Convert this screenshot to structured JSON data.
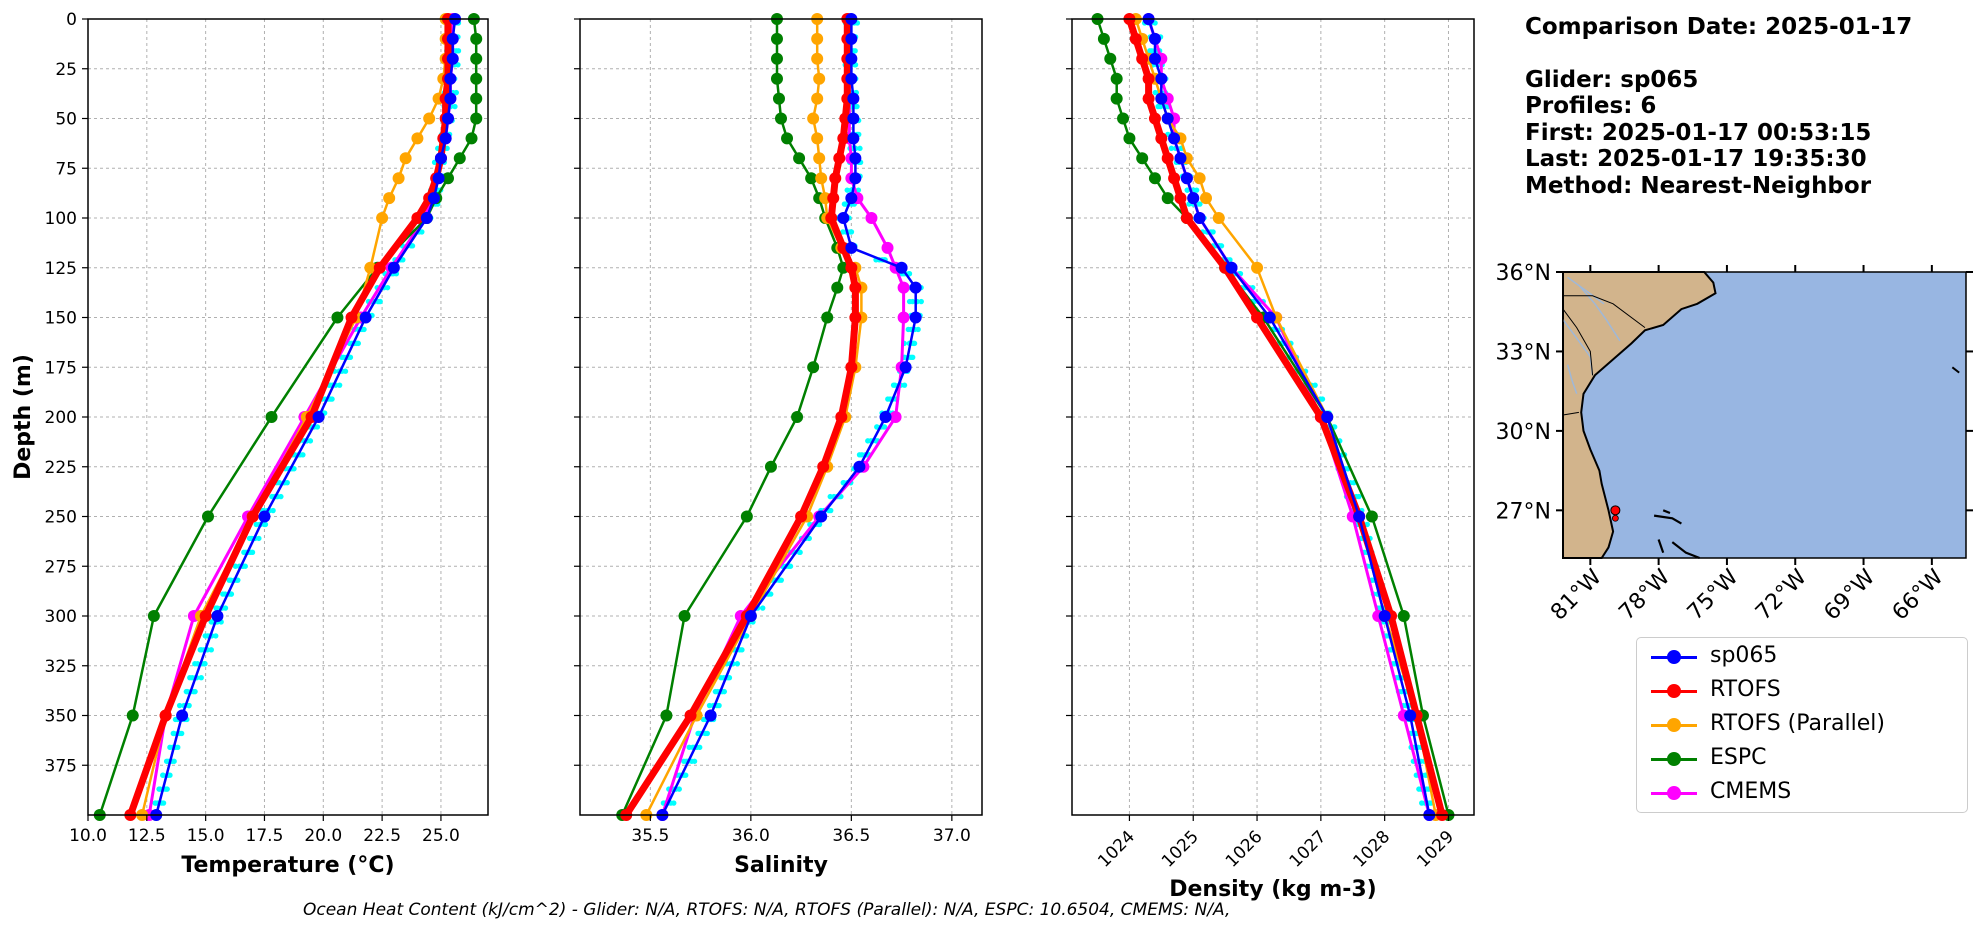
{
  "info": {
    "comparison": "Comparison Date: 2025-01-17",
    "glider": "Glider: sp065",
    "profiles": "Profiles: 6",
    "first": "First: 2025-01-17 00:53:15",
    "last": "Last: 2025-01-17 19:35:30",
    "method": "Method: Nearest-Neighbor"
  },
  "footer": "Ocean Heat Content (kJ/cm^2) - Glider: N/A,  RTOFS: N/A,  RTOFS (Parallel): N/A,  ESPC: 10.6504,  CMEMS: N/A,",
  "colors": {
    "sp065": "#0000ff",
    "RTOFS": "#ff0000",
    "RTOFS (Parallel)": "#ffa500",
    "ESPC": "#008000",
    "CMEMS": "#ff00ff",
    "glider_profiles": "#00ffff",
    "land": "#d2b48c",
    "ocean": "#98b6e2",
    "grid": "#b0b0b0"
  },
  "legend": [
    {
      "label": "sp065",
      "color": "#0000ff"
    },
    {
      "label": "RTOFS",
      "color": "#ff0000"
    },
    {
      "label": "RTOFS (Parallel)",
      "color": "#ffa500"
    },
    {
      "label": "ESPC",
      "color": "#008000"
    },
    {
      "label": "CMEMS",
      "color": "#ff00ff"
    }
  ],
  "chart_data": [
    {
      "type": "line",
      "xlabel": "Temperature (°C)",
      "ylabel": "Depth (m)",
      "xlim": [
        10,
        27
      ],
      "ylim": [
        400,
        0
      ],
      "grid": true,
      "xticks": [
        "10.0",
        "12.5",
        "15.0",
        "17.5",
        "20.0",
        "22.5",
        "25.0"
      ],
      "yticks": [
        "0",
        "25",
        "50",
        "75",
        "100",
        "125",
        "150",
        "175",
        "200",
        "225",
        "250",
        "275",
        "300",
        "325",
        "350",
        "375"
      ],
      "depth": [
        0,
        10,
        20,
        30,
        40,
        50,
        60,
        70,
        80,
        90,
        100,
        125,
        150,
        200,
        250,
        300,
        350,
        400
      ],
      "series": [
        {
          "name": "sp065",
          "values": [
            25.6,
            25.5,
            25.5,
            25.4,
            25.4,
            25.3,
            25.2,
            25.0,
            24.9,
            24.7,
            24.4,
            23.0,
            21.8,
            19.8,
            17.5,
            15.5,
            14.0,
            12.9
          ]
        },
        {
          "name": "RTOFS",
          "values": [
            25.3,
            25.3,
            25.3,
            25.3,
            25.2,
            25.2,
            25.1,
            25.0,
            24.8,
            24.5,
            24.0,
            22.4,
            21.2,
            19.5,
            17.0,
            15.0,
            13.3,
            11.8
          ]
        },
        {
          "name": "RTOFS (Parallel)",
          "values": [
            25.2,
            25.2,
            25.2,
            25.1,
            24.9,
            24.5,
            24.0,
            23.5,
            23.2,
            22.8,
            22.5,
            22.0,
            21.4,
            19.3,
            17.0,
            14.8,
            13.3,
            12.3
          ]
        },
        {
          "name": "ESPC",
          "values": [
            26.4,
            26.5,
            26.5,
            26.5,
            26.5,
            26.5,
            26.3,
            25.8,
            25.3,
            24.8,
            24.4,
            22.3,
            20.6,
            17.8,
            15.1,
            12.8,
            11.9,
            10.5
          ]
        },
        {
          "name": "CMEMS",
          "values": [
            25.5,
            25.5,
            25.5,
            25.4,
            25.4,
            25.3,
            25.2,
            25.0,
            24.8,
            24.6,
            24.3,
            22.9,
            21.6,
            19.2,
            16.8,
            14.5,
            13.3,
            12.6
          ]
        }
      ]
    },
    {
      "type": "line",
      "xlabel": "Salinity",
      "ylim": [
        400,
        0
      ],
      "xlim": [
        35.15,
        37.15
      ],
      "grid": true,
      "xticks": [
        "35.5",
        "36.0",
        "36.5",
        "37.0"
      ],
      "depth": [
        0,
        10,
        20,
        30,
        40,
        50,
        60,
        70,
        80,
        90,
        100,
        115,
        125,
        135,
        150,
        175,
        200,
        225,
        250,
        300,
        350,
        400
      ],
      "series": [
        {
          "name": "sp065",
          "values": [
            36.5,
            36.5,
            36.5,
            36.5,
            36.51,
            36.51,
            36.51,
            36.52,
            36.52,
            36.5,
            36.46,
            36.5,
            36.75,
            36.82,
            36.82,
            36.77,
            36.67,
            36.54,
            36.35,
            36.0,
            35.8,
            35.56
          ]
        },
        {
          "name": "RTOFS",
          "values": [
            36.48,
            36.48,
            36.48,
            36.48,
            36.48,
            36.47,
            36.46,
            36.44,
            36.42,
            36.41,
            36.4,
            36.46,
            36.5,
            36.52,
            36.52,
            36.5,
            36.45,
            36.36,
            36.25,
            35.98,
            35.7,
            35.38
          ]
        },
        {
          "name": "RTOFS (Parallel)",
          "values": [
            36.33,
            36.33,
            36.33,
            36.34,
            36.33,
            36.31,
            36.33,
            36.34,
            36.35,
            36.37,
            36.38,
            36.45,
            36.52,
            36.55,
            36.55,
            36.52,
            36.47,
            36.38,
            36.28,
            36.0,
            35.73,
            35.48
          ]
        },
        {
          "name": "ESPC",
          "values": [
            36.13,
            36.13,
            36.13,
            36.13,
            36.14,
            36.15,
            36.18,
            36.24,
            36.3,
            36.34,
            36.37,
            36.43,
            36.46,
            36.43,
            36.38,
            36.31,
            36.23,
            36.1,
            35.98,
            35.67,
            35.58,
            35.36
          ]
        },
        {
          "name": "CMEMS",
          "values": [
            36.49,
            36.49,
            36.49,
            36.49,
            36.49,
            36.49,
            36.49,
            36.5,
            36.5,
            36.53,
            36.6,
            36.68,
            36.72,
            36.76,
            36.76,
            36.75,
            36.72,
            36.56,
            36.34,
            35.95,
            35.72,
            35.56
          ]
        }
      ]
    },
    {
      "type": "line",
      "xlabel": "Density (kg m-3)",
      "ylim": [
        400,
        0
      ],
      "xlim": [
        1023.1,
        1029.4
      ],
      "grid": true,
      "xticks": [
        "1024",
        "1025",
        "1026",
        "1027",
        "1028",
        "1029"
      ],
      "depth": [
        0,
        10,
        20,
        30,
        40,
        50,
        60,
        70,
        80,
        90,
        100,
        125,
        150,
        200,
        250,
        300,
        350,
        400
      ],
      "series": [
        {
          "name": "sp065",
          "values": [
            1024.3,
            1024.4,
            1024.4,
            1024.5,
            1024.5,
            1024.6,
            1024.7,
            1024.8,
            1024.9,
            1025.0,
            1025.1,
            1025.6,
            1026.2,
            1027.1,
            1027.6,
            1028.0,
            1028.4,
            1028.7
          ]
        },
        {
          "name": "RTOFS",
          "values": [
            1024.0,
            1024.1,
            1024.2,
            1024.3,
            1024.3,
            1024.4,
            1024.5,
            1024.6,
            1024.7,
            1024.8,
            1024.9,
            1025.5,
            1026.0,
            1027.0,
            1027.6,
            1028.1,
            1028.5,
            1028.9
          ]
        },
        {
          "name": "RTOFS (Parallel)",
          "values": [
            1024.1,
            1024.2,
            1024.3,
            1024.4,
            1024.5,
            1024.6,
            1024.8,
            1024.9,
            1025.1,
            1025.2,
            1025.4,
            1026.0,
            1026.3,
            1027.1,
            1027.6,
            1028.0,
            1028.5,
            1028.8
          ]
        },
        {
          "name": "ESPC",
          "values": [
            1023.5,
            1023.6,
            1023.7,
            1023.8,
            1023.8,
            1023.9,
            1024.0,
            1024.2,
            1024.4,
            1024.6,
            1024.9,
            1025.5,
            1026.1,
            1027.1,
            1027.8,
            1028.3,
            1028.6,
            1029.0
          ]
        },
        {
          "name": "CMEMS",
          "values": [
            1024.3,
            1024.4,
            1024.5,
            1024.5,
            1024.6,
            1024.7,
            1024.7,
            1024.8,
            1024.9,
            1025.0,
            1025.1,
            1025.6,
            1026.3,
            1027.0,
            1027.5,
            1027.9,
            1028.3,
            1028.7
          ]
        }
      ]
    }
  ],
  "map": {
    "lat_ticks": [
      "36°N",
      "33°N",
      "30°N",
      "27°N"
    ],
    "lon_ticks": [
      "81°W",
      "78°W",
      "75°W",
      "72°W",
      "69°W",
      "66°W"
    ],
    "glider_marker": {
      "lon": -79.9,
      "lat": 27.0
    }
  }
}
